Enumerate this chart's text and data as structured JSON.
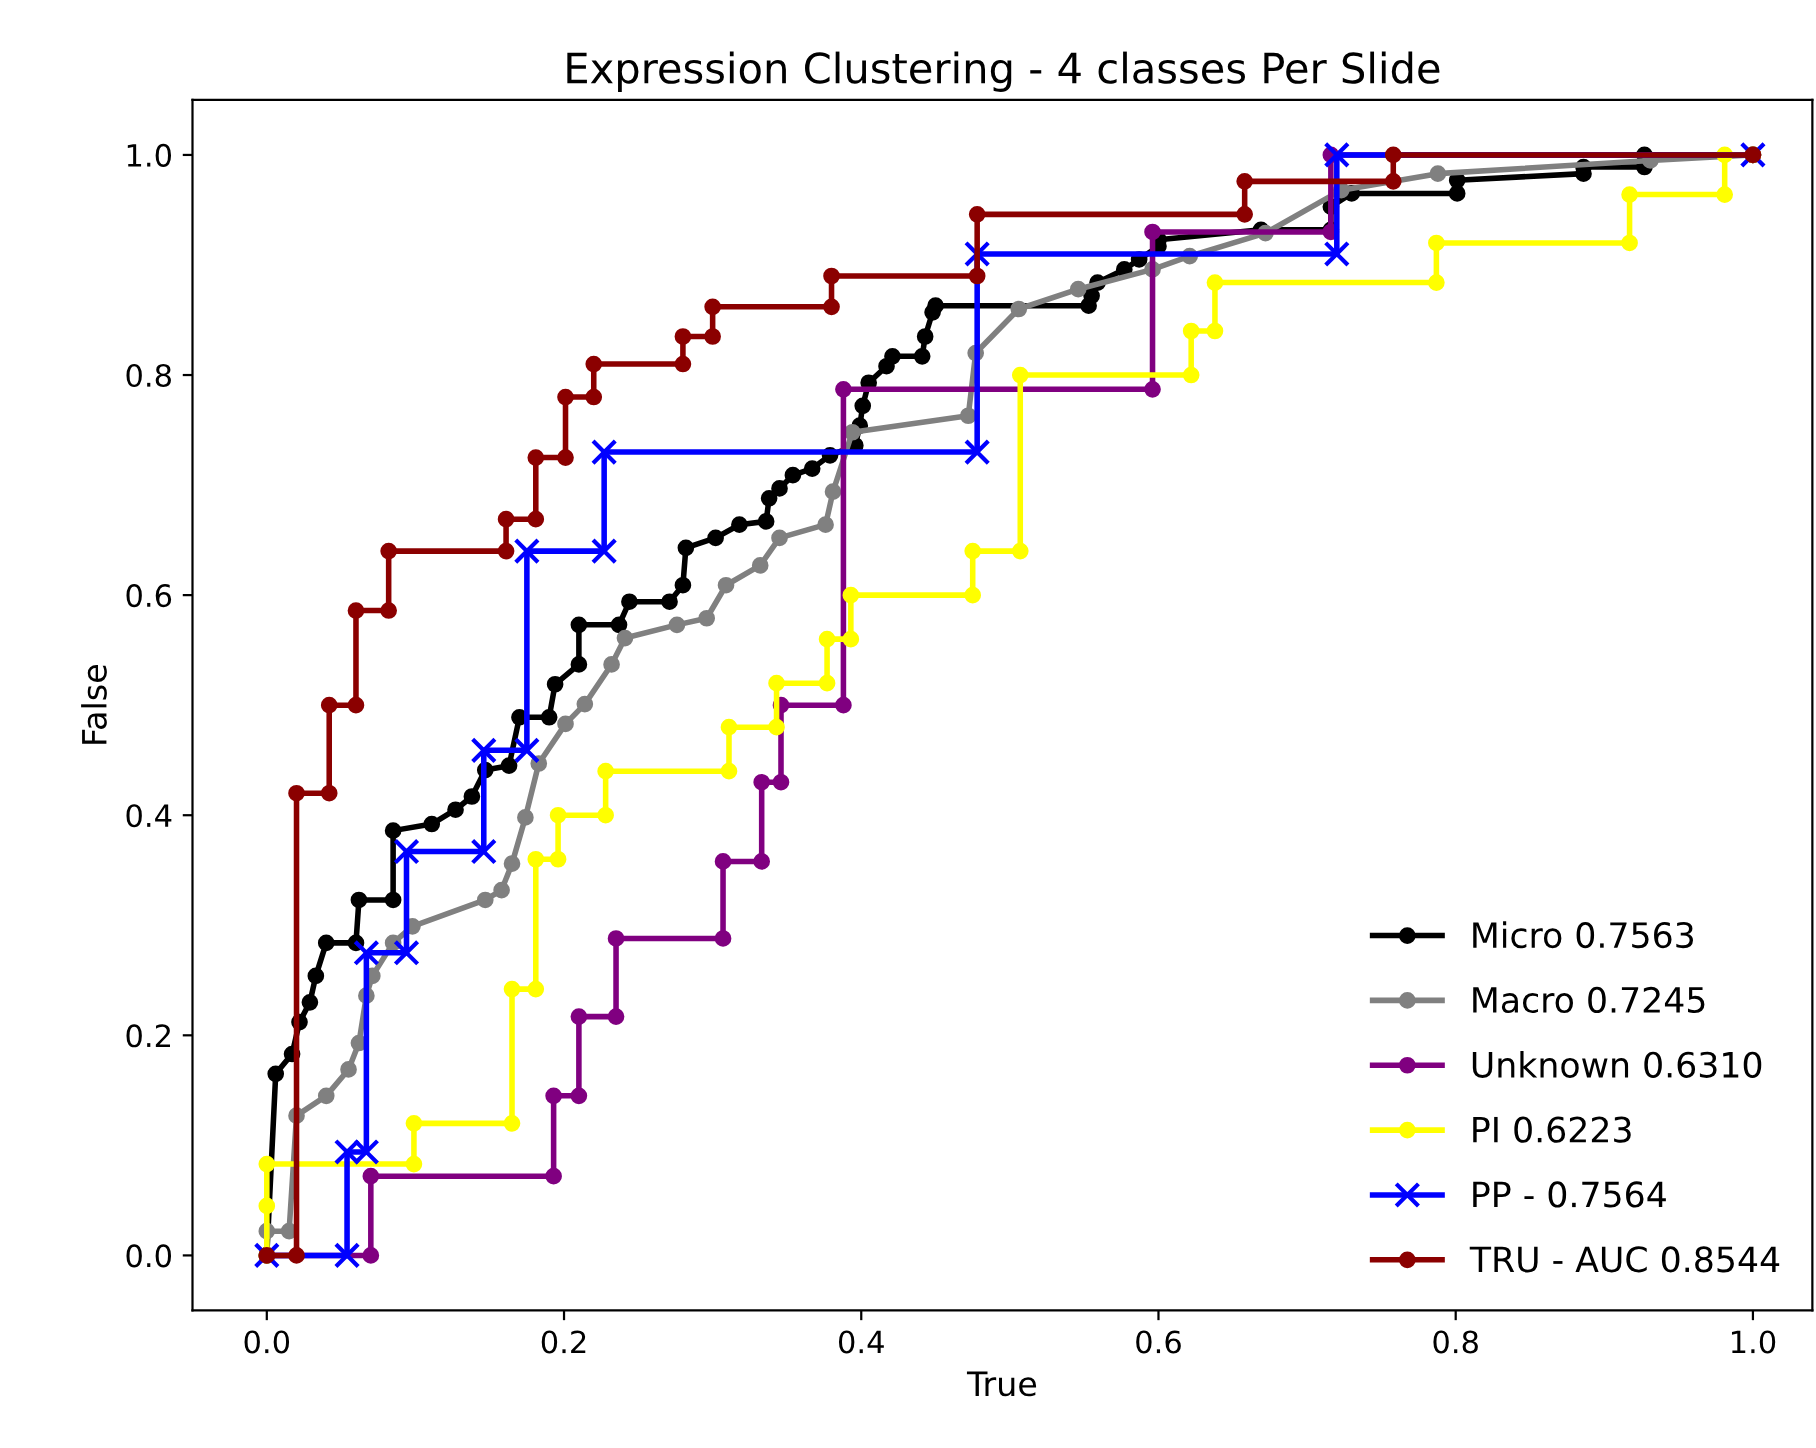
{
  "chart_data": {
    "type": "line",
    "title": "Expression Clustering - 4 classes Per Slide",
    "xlabel": "True",
    "ylabel": "False",
    "xlim": [
      -0.05,
      1.04
    ],
    "ylim": [
      -0.05,
      1.05
    ],
    "xticks": [
      {
        "value": 0,
        "label": "0.0"
      },
      {
        "value": 0.2,
        "label": "0.2"
      },
      {
        "value": 0.4,
        "label": "0.4"
      },
      {
        "value": 0.6,
        "label": "0.6"
      },
      {
        "value": 0.8,
        "label": "0.8"
      },
      {
        "value": 1,
        "label": "1.0"
      }
    ],
    "yticks": [
      {
        "value": 0,
        "label": "0.0"
      },
      {
        "value": 0.2,
        "label": "0.2"
      },
      {
        "value": 0.4,
        "label": "0.4"
      },
      {
        "value": 0.6,
        "label": "0.6"
      },
      {
        "value": 0.8,
        "label": "0.8"
      },
      {
        "value": 1,
        "label": "1.0"
      }
    ],
    "grid": false,
    "legend": "bottom right",
    "line_style": "solid",
    "series": [
      {
        "name": "Micro 0.7563",
        "color": "#000000",
        "marker": "circle",
        "x": [
          0,
          0.006,
          0.017,
          0.022,
          0.029,
          0.033,
          0.04,
          0.06,
          0.062,
          0.085,
          0.085,
          0.111,
          0.127,
          0.138,
          0.147,
          0.163,
          0.17,
          0.19,
          0.194,
          0.21,
          0.21,
          0.237,
          0.244,
          0.271,
          0.28,
          0.282,
          0.302,
          0.318,
          0.336,
          0.338,
          0.345,
          0.354,
          0.367,
          0.379,
          0.396,
          0.399,
          0.401,
          0.405,
          0.417,
          0.421,
          0.441,
          0.443,
          0.448,
          0.45,
          0.553,
          0.555,
          0.559,
          0.577,
          0.587,
          0.6,
          0.6,
          0.669,
          0.716,
          0.716,
          0.73,
          0.801,
          0.801,
          0.886,
          0.886,
          0.927,
          0.927,
          1.0
        ],
        "values": [
          0,
          0.165,
          0.183,
          0.212,
          0.23,
          0.254,
          0.284,
          0.284,
          0.323,
          0.323,
          0.386,
          0.392,
          0.405,
          0.417,
          0.441,
          0.445,
          0.489,
          0.489,
          0.519,
          0.537,
          0.573,
          0.573,
          0.594,
          0.594,
          0.609,
          0.643,
          0.652,
          0.664,
          0.667,
          0.688,
          0.697,
          0.709,
          0.715,
          0.727,
          0.736,
          0.754,
          0.772,
          0.793,
          0.808,
          0.817,
          0.817,
          0.835,
          0.857,
          0.863,
          0.863,
          0.872,
          0.884,
          0.896,
          0.905,
          0.917,
          0.923,
          0.932,
          0.932,
          0.953,
          0.965,
          0.965,
          0.977,
          0.983,
          0.989,
          0.989,
          1.0,
          1.0
        ]
      },
      {
        "name": "Macro 0.7245",
        "color": "#808080",
        "marker": "circle",
        "x": [
          0,
          0,
          0.015,
          0.02,
          0.04,
          0.055,
          0.062,
          0.067,
          0.071,
          0.085,
          0.098,
          0.147,
          0.158,
          0.165,
          0.174,
          0.183,
          0.201,
          0.214,
          0.232,
          0.241,
          0.276,
          0.296,
          0.309,
          0.332,
          0.345,
          0.376,
          0.381,
          0.394,
          0.472,
          0.477,
          0.506,
          0.546,
          0.596,
          0.621,
          0.672,
          0.723,
          0.788,
          0.931,
          1.0
        ],
        "values": [
          0,
          0.022,
          0.022,
          0.127,
          0.145,
          0.169,
          0.193,
          0.236,
          0.254,
          0.284,
          0.299,
          0.323,
          0.332,
          0.356,
          0.398,
          0.447,
          0.483,
          0.501,
          0.537,
          0.561,
          0.573,
          0.579,
          0.609,
          0.627,
          0.652,
          0.664,
          0.694,
          0.748,
          0.763,
          0.82,
          0.86,
          0.878,
          0.896,
          0.908,
          0.929,
          0.968,
          0.983,
          0.995,
          1.0
        ]
      },
      {
        "name": "Unknown 0.6310",
        "color": "#800080",
        "marker": "circle",
        "x": [
          0,
          0.07,
          0.07,
          0.193,
          0.193,
          0.21,
          0.21,
          0.235,
          0.235,
          0.307,
          0.307,
          0.333,
          0.333,
          0.346,
          0.346,
          0.388,
          0.388,
          0.596,
          0.596,
          0.716,
          0.716,
          1.0
        ],
        "values": [
          0,
          0,
          0.072,
          0.072,
          0.145,
          0.145,
          0.217,
          0.217,
          0.288,
          0.288,
          0.358,
          0.358,
          0.43,
          0.43,
          0.5,
          0.5,
          0.787,
          0.787,
          0.93,
          0.93,
          1.0,
          1.0
        ]
      },
      {
        "name": "PI 0.6223",
        "color": "#ffff00",
        "marker": "circle",
        "x": [
          0,
          0,
          0,
          0.099,
          0.099,
          0.165,
          0.165,
          0.181,
          0.181,
          0.196,
          0.196,
          0.228,
          0.228,
          0.311,
          0.311,
          0.343,
          0.343,
          0.377,
          0.377,
          0.393,
          0.393,
          0.475,
          0.475,
          0.507,
          0.507,
          0.622,
          0.622,
          0.638,
          0.638,
          0.787,
          0.787,
          0.917,
          0.917,
          0.981,
          0.981,
          1.0
        ],
        "values": [
          0,
          0.045,
          0.083,
          0.083,
          0.12,
          0.12,
          0.242,
          0.242,
          0.36,
          0.36,
          0.4,
          0.4,
          0.44,
          0.44,
          0.48,
          0.48,
          0.52,
          0.52,
          0.56,
          0.56,
          0.6,
          0.6,
          0.64,
          0.64,
          0.8,
          0.8,
          0.84,
          0.84,
          0.884,
          0.884,
          0.92,
          0.92,
          0.964,
          0.964,
          1.0,
          1.0
        ]
      },
      {
        "name": "PP - 0.7564",
        "color": "#0000ff",
        "marker": "cross",
        "x": [
          0,
          0.054,
          0.054,
          0.067,
          0.067,
          0.094,
          0.094,
          0.146,
          0.146,
          0.175,
          0.175,
          0.227,
          0.227,
          0.478,
          0.478,
          0.72,
          0.72,
          1.0
        ],
        "values": [
          0,
          0,
          0.094,
          0.094,
          0.275,
          0.275,
          0.367,
          0.367,
          0.459,
          0.459,
          0.64,
          0.64,
          0.73,
          0.73,
          0.91,
          0.91,
          1.0,
          1.0
        ]
      },
      {
        "name": "TRU - AUC 0.8544",
        "color": "#8b0000",
        "marker": "circle",
        "x": [
          0,
          0.02,
          0.02,
          0.042,
          0.042,
          0.06,
          0.06,
          0.082,
          0.082,
          0.161,
          0.161,
          0.181,
          0.181,
          0.201,
          0.201,
          0.22,
          0.22,
          0.28,
          0.28,
          0.3,
          0.3,
          0.38,
          0.38,
          0.478,
          0.478,
          0.658,
          0.658,
          0.758,
          0.758,
          1.0
        ],
        "values": [
          0,
          0,
          0.42,
          0.42,
          0.5,
          0.5,
          0.586,
          0.586,
          0.64,
          0.64,
          0.669,
          0.669,
          0.725,
          0.725,
          0.78,
          0.78,
          0.81,
          0.81,
          0.835,
          0.835,
          0.862,
          0.862,
          0.89,
          0.89,
          0.946,
          0.946,
          0.976,
          0.976,
          1.0,
          1.0
        ]
      }
    ]
  }
}
